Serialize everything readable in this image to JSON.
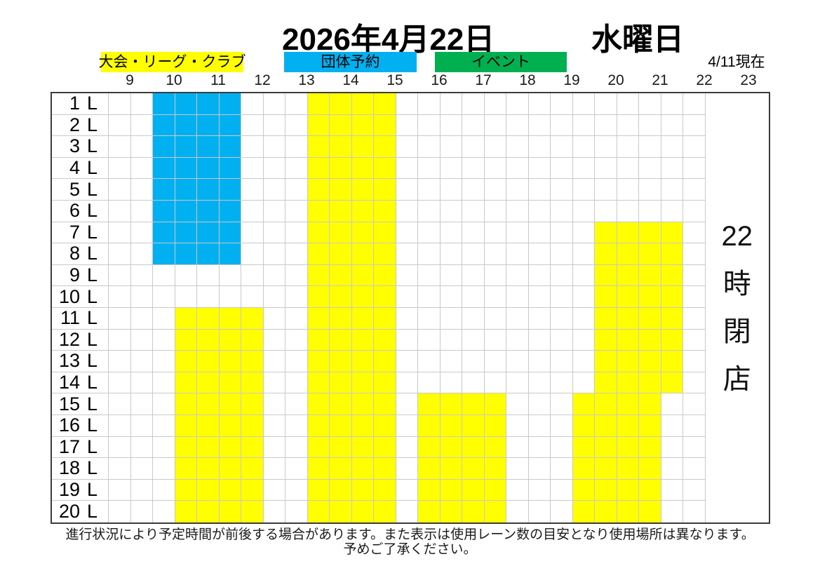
{
  "header": {
    "date": "2026年4月22日",
    "weekday": "水曜日",
    "as_of": "4/11現在"
  },
  "legend": {
    "items": [
      {
        "id": "league",
        "label": "大会・リーグ・クラブ",
        "color": "#FFFF00"
      },
      {
        "id": "group",
        "label": "団体予約",
        "color": "#00B0F0"
      },
      {
        "id": "event",
        "label": "イベント",
        "color": "#00B050"
      }
    ]
  },
  "chart_data": {
    "type": "heatmap",
    "title": "2026年4月22日 水曜日 レーン使用予定表",
    "x_axis": {
      "hour_ticks": [
        9,
        10,
        11,
        12,
        13,
        14,
        15,
        16,
        17,
        18,
        19,
        20,
        21,
        22,
        23
      ],
      "grid_time_start": 8.5,
      "grid_time_end": 22,
      "closed_after_hour": 22
    },
    "y_axis": {
      "lane_numbers": [
        "1",
        "2",
        "3",
        "4",
        "5",
        "6",
        "7",
        "8",
        "9",
        "10",
        "11",
        "12",
        "13",
        "14",
        "15",
        "16",
        "17",
        "18",
        "19",
        "20"
      ],
      "lane_suffix": "L"
    },
    "blocks": [
      {
        "category": "団体予約",
        "color": "#00B0F0",
        "lane_from": 1,
        "lane_to": 8,
        "time_start": 9.5,
        "time_end": 11.5
      },
      {
        "category": "大会・リーグ・クラブ",
        "color": "#FFFF00",
        "lane_from": 11,
        "lane_to": 20,
        "time_start": 10,
        "time_end": 12
      },
      {
        "category": "大会・リーグ・クラブ",
        "color": "#FFFF00",
        "lane_from": 1,
        "lane_to": 20,
        "time_start": 13,
        "time_end": 15
      },
      {
        "category": "大会・リーグ・クラブ",
        "color": "#FFFF00",
        "lane_from": 15,
        "lane_to": 20,
        "time_start": 15.5,
        "time_end": 17.5
      },
      {
        "category": "大会・リーグ・クラブ",
        "color": "#FFFF00",
        "lane_from": 7,
        "lane_to": 14,
        "time_start": 19.5,
        "time_end": 21.5
      },
      {
        "category": "大会・リーグ・クラブ",
        "color": "#FFFF00",
        "lane_from": 15,
        "lane_to": 20,
        "time_start": 19,
        "time_end": 21
      }
    ],
    "closing_note": {
      "text": "22時閉店",
      "chars": [
        "22",
        "時",
        "閉",
        "店"
      ]
    }
  },
  "footer": {
    "line1": "進行状況により予定時間が前後する場合があります。また表示は使用レーン数の目安となり使用場所は異なります。",
    "line2": "予めご了承ください。"
  }
}
